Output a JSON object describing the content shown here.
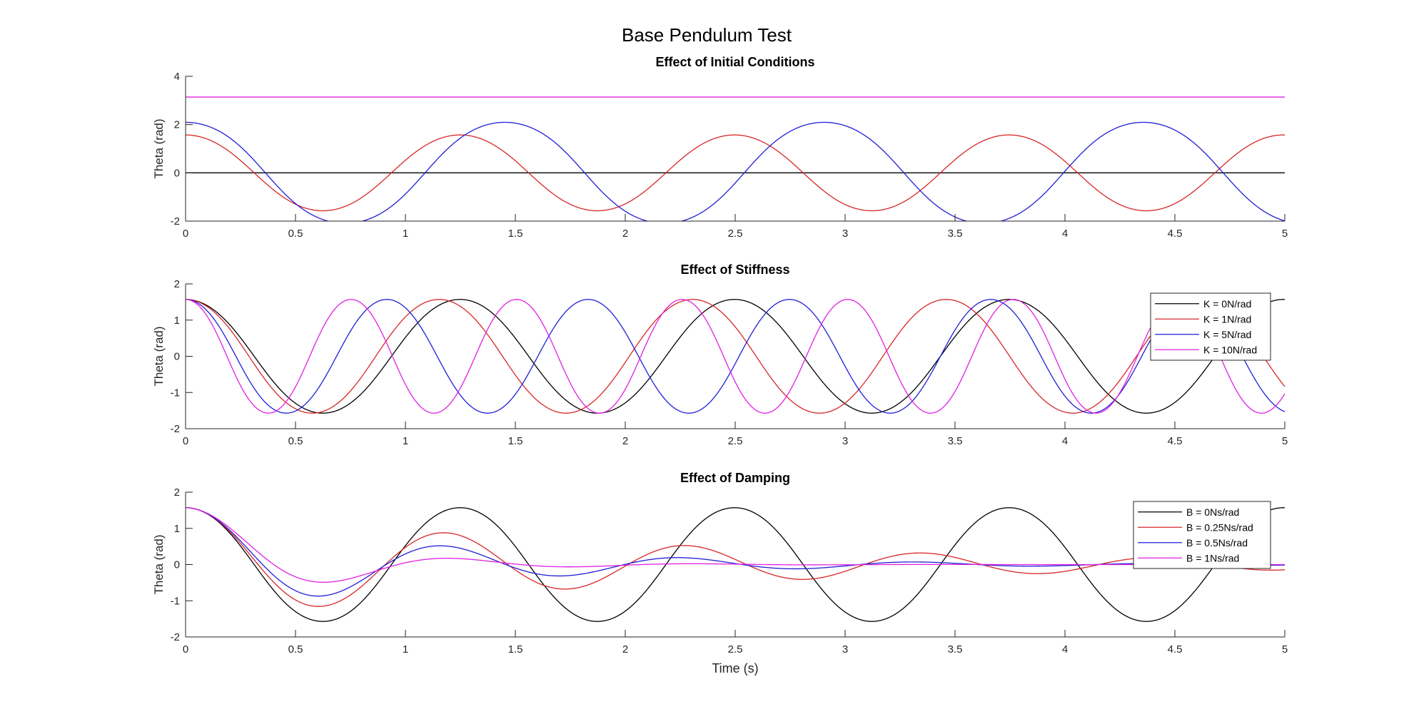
{
  "figure_title": "Base Pendulum Test",
  "colors": {
    "black": "#000000",
    "red": "#d62728",
    "blue": "#1f1fd6",
    "magenta": "#e020e0"
  },
  "chart_data": [
    {
      "type": "line",
      "title": "Effect of Initial Conditions",
      "xlabel": "",
      "ylabel": "Theta (rad)",
      "xlim": [
        0,
        5
      ],
      "ylim": [
        -2,
        4
      ],
      "xticks": [
        0,
        0.5,
        1,
        1.5,
        2,
        2.5,
        3,
        3.5,
        4,
        4.5,
        5
      ],
      "yticks": [
        -2,
        0,
        2,
        4
      ],
      "legend": null,
      "series": [
        {
          "color": "#000000",
          "kind": "pendulum",
          "theta0": 0,
          "omega": 5.94,
          "damping": 0
        },
        {
          "color": "#d62728",
          "kind": "pendulum",
          "theta0": 1.5708,
          "omega": 5.94,
          "damping": 0
        },
        {
          "color": "#1f1fd6",
          "kind": "pendulum",
          "theta0": 2.0944,
          "omega": 5.94,
          "damping": 0
        },
        {
          "color": "#e020e0",
          "kind": "constant",
          "theta0": 3.1416
        }
      ]
    },
    {
      "type": "line",
      "title": "Effect of Stiffness",
      "xlabel": "",
      "ylabel": "Theta (rad)",
      "xlim": [
        0,
        5
      ],
      "ylim": [
        -2,
        2
      ],
      "xticks": [
        0,
        0.5,
        1,
        1.5,
        2,
        2.5,
        3,
        3.5,
        4,
        4.5,
        5
      ],
      "yticks": [
        -2,
        -1,
        0,
        1,
        2
      ],
      "legend": "top-right",
      "series": [
        {
          "name": "K = 0N/rad",
          "color": "#000000",
          "kind": "pendulum",
          "theta0": 1.5708,
          "omega": 5.94,
          "damping": 0
        },
        {
          "name": "K = 1N/rad",
          "color": "#d62728",
          "kind": "pendulum",
          "theta0": 1.5708,
          "omega": 6.43,
          "damping": 0
        },
        {
          "name": "K = 5N/rad",
          "color": "#1f1fd6",
          "kind": "pendulum",
          "theta0": 1.5708,
          "omega": 8.1,
          "damping": 0
        },
        {
          "name": "K = 10N/rad",
          "color": "#e020e0",
          "kind": "pendulum",
          "theta0": 1.5708,
          "omega": 9.85,
          "damping": 0
        }
      ]
    },
    {
      "type": "line",
      "title": "Effect of Damping",
      "xlabel": "Time (s)",
      "ylabel": "Theta (rad)",
      "xlim": [
        0,
        5
      ],
      "ylim": [
        -2,
        2
      ],
      "xticks": [
        0,
        0.5,
        1,
        1.5,
        2,
        2.5,
        3,
        3.5,
        4,
        4.5,
        5
      ],
      "yticks": [
        -2,
        -1,
        0,
        1,
        2
      ],
      "legend": "top-right",
      "series": [
        {
          "name": "B = 0Ns/rad",
          "color": "#000000",
          "kind": "pendulum",
          "theta0": 1.5708,
          "omega": 5.94,
          "damping": 0
        },
        {
          "name": "B = 0.25Ns/rad",
          "color": "#d62728",
          "kind": "pendulum",
          "theta0": 1.5708,
          "omega": 5.94,
          "damping": 0.077
        },
        {
          "name": "B = 0.5Ns/rad",
          "color": "#1f1fd6",
          "kind": "pendulum",
          "theta0": 1.5708,
          "omega": 5.94,
          "damping": 0.154
        },
        {
          "name": "B = 1Ns/rad",
          "color": "#e020e0",
          "kind": "pendulum",
          "theta0": 1.5708,
          "omega": 5.94,
          "damping": 0.308
        }
      ]
    }
  ]
}
